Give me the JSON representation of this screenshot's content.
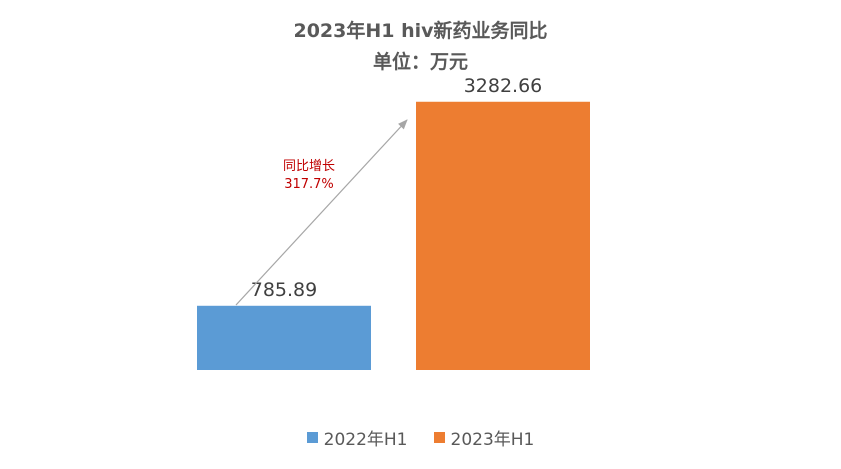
{
  "chart_data": {
    "type": "bar",
    "title": "2023年H1 hiv新药业务同比",
    "subtitle": "单位：万元",
    "categories": [
      "2022年H1",
      "2023年H1"
    ],
    "values": [
      785.89,
      3282.66
    ],
    "data_labels": [
      "785.89",
      "3282.66"
    ],
    "colors": [
      "#5B9BD5",
      "#ED7D31"
    ],
    "ylim": [
      0,
      3500
    ],
    "grid": false,
    "legend": "bottom",
    "annotation": {
      "line1": "同比增长",
      "line2": "317.7%",
      "color": "#C00000"
    }
  }
}
